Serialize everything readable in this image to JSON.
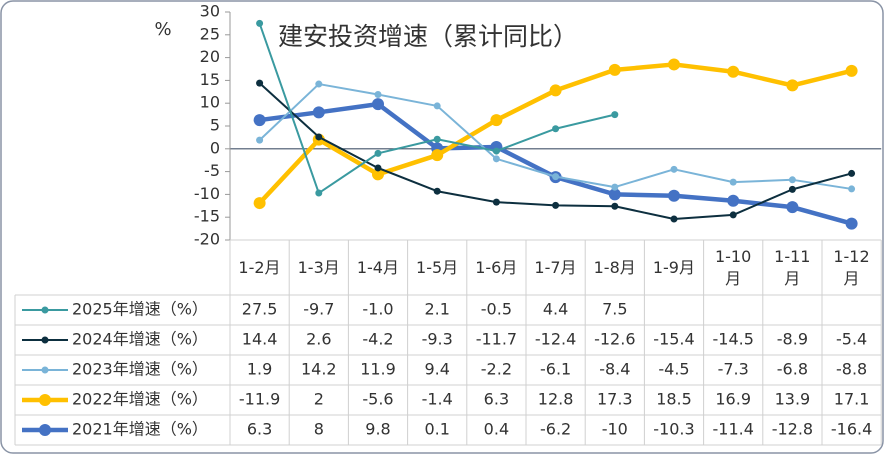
{
  "chart_data": {
    "type": "line",
    "title": "建安投资增速（累计同比）",
    "y_label": "%",
    "categories": [
      "1-2月",
      "1-3月",
      "1-4月",
      "1-5月",
      "1-6月",
      "1-7月",
      "1-8月",
      "1-9月",
      "1-10月",
      "1-11月",
      "1-12月"
    ],
    "ylim": [
      -20,
      30
    ],
    "yticks": [
      -20,
      -15,
      -10,
      -5,
      0,
      5,
      10,
      15,
      20,
      25,
      30
    ],
    "series": [
      {
        "name": "2025年增速（%）",
        "color": "#3a9aa0",
        "values": [
          27.5,
          -9.7,
          -1.0,
          2.1,
          -0.5,
          4.4,
          7.5,
          null,
          null,
          null,
          null
        ],
        "value_labels": [
          "27.5",
          "-9.7",
          "-1.0",
          "2.1",
          "-0.5",
          "4.4",
          "7.5",
          null,
          null,
          null,
          null
        ]
      },
      {
        "name": "2024年增速（%）",
        "color": "#0d2f3f",
        "values": [
          14.4,
          2.6,
          -4.2,
          -9.3,
          -11.7,
          -12.4,
          -12.6,
          -15.4,
          -14.5,
          -8.9,
          -5.4
        ]
      },
      {
        "name": "2023年增速（%）",
        "color": "#7ab4d8",
        "values": [
          1.9,
          14.2,
          11.9,
          9.4,
          -2.2,
          -6.1,
          -8.4,
          -4.5,
          -7.3,
          -6.8,
          -8.8
        ]
      },
      {
        "name": "2022年增速（%）",
        "color": "#ffc000",
        "values": [
          -11.9,
          2,
          -5.6,
          -1.4,
          6.3,
          12.8,
          17.3,
          18.5,
          16.9,
          13.9,
          17.1
        ]
      },
      {
        "name": "2021年增速（%）",
        "color": "#4472c4",
        "values": [
          6.3,
          8,
          9.8,
          0.1,
          0.4,
          -6.2,
          -10,
          -10.3,
          -11.4,
          -12.8,
          -16.4
        ]
      }
    ]
  }
}
